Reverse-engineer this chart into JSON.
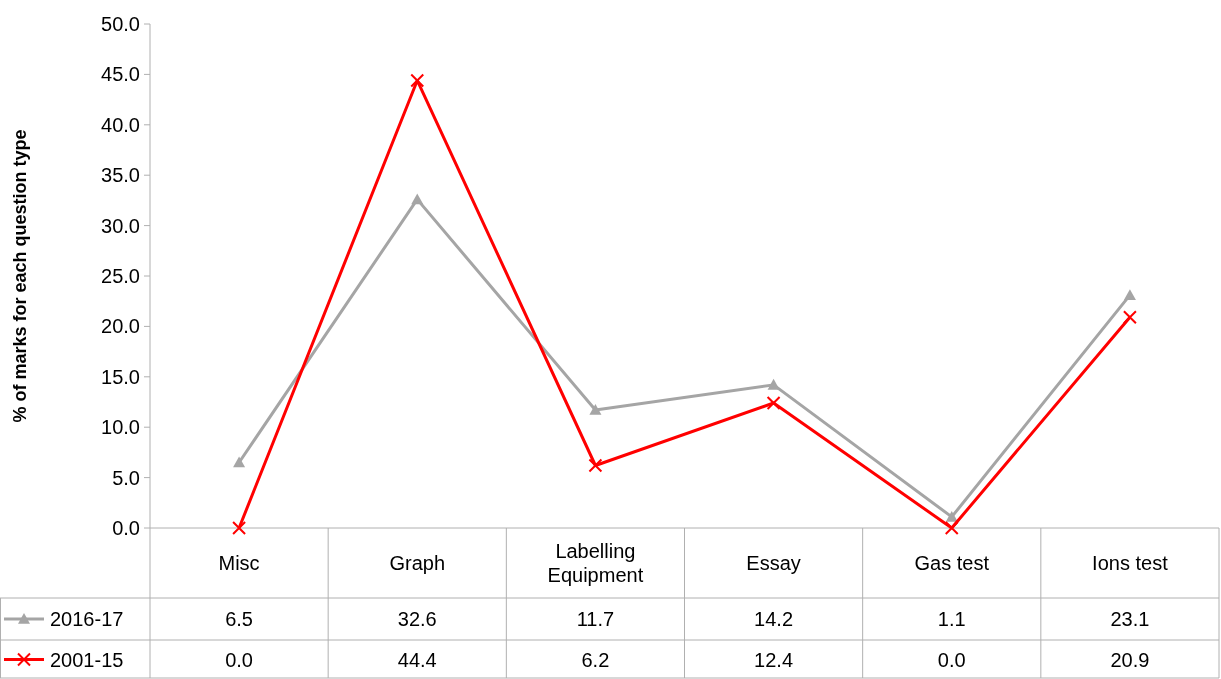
{
  "chart_data": {
    "type": "line",
    "ylabel": "% of marks for each question type",
    "categories": [
      "Misc",
      "Graph",
      "Labelling Equipment",
      "Essay",
      "Gas test",
      "Ions test"
    ],
    "series": [
      {
        "name": "2016-17",
        "color": "#a5a5a5",
        "marker": "triangle",
        "values": [
          6.5,
          32.6,
          11.7,
          14.2,
          1.1,
          23.1
        ],
        "value_labels": [
          "6.5",
          "32.6",
          "11.7",
          "14.2",
          "1.1",
          "23.1"
        ]
      },
      {
        "name": "2001-15",
        "color": "#ff0000",
        "marker": "cross",
        "values": [
          0.0,
          44.4,
          6.2,
          12.4,
          0.0,
          20.9
        ],
        "value_labels": [
          "0.0",
          "44.4",
          "6.2",
          "12.4",
          "0.0",
          "20.9"
        ]
      }
    ],
    "ylim": [
      0,
      50
    ],
    "yticks": [
      {
        "value": 0,
        "label": "0.0"
      },
      {
        "value": 5,
        "label": "5.0"
      },
      {
        "value": 10,
        "label": "10.0"
      },
      {
        "value": 15,
        "label": "15.0"
      },
      {
        "value": 20,
        "label": "20.0"
      },
      {
        "value": 25,
        "label": "25.0"
      },
      {
        "value": 30,
        "label": "30.0"
      },
      {
        "value": 35,
        "label": "35.0"
      },
      {
        "value": 40,
        "label": "40.0"
      },
      {
        "value": 45,
        "label": "45.0"
      },
      {
        "value": 50,
        "label": "50.0"
      }
    ],
    "grid": false,
    "legend": "bottom"
  }
}
